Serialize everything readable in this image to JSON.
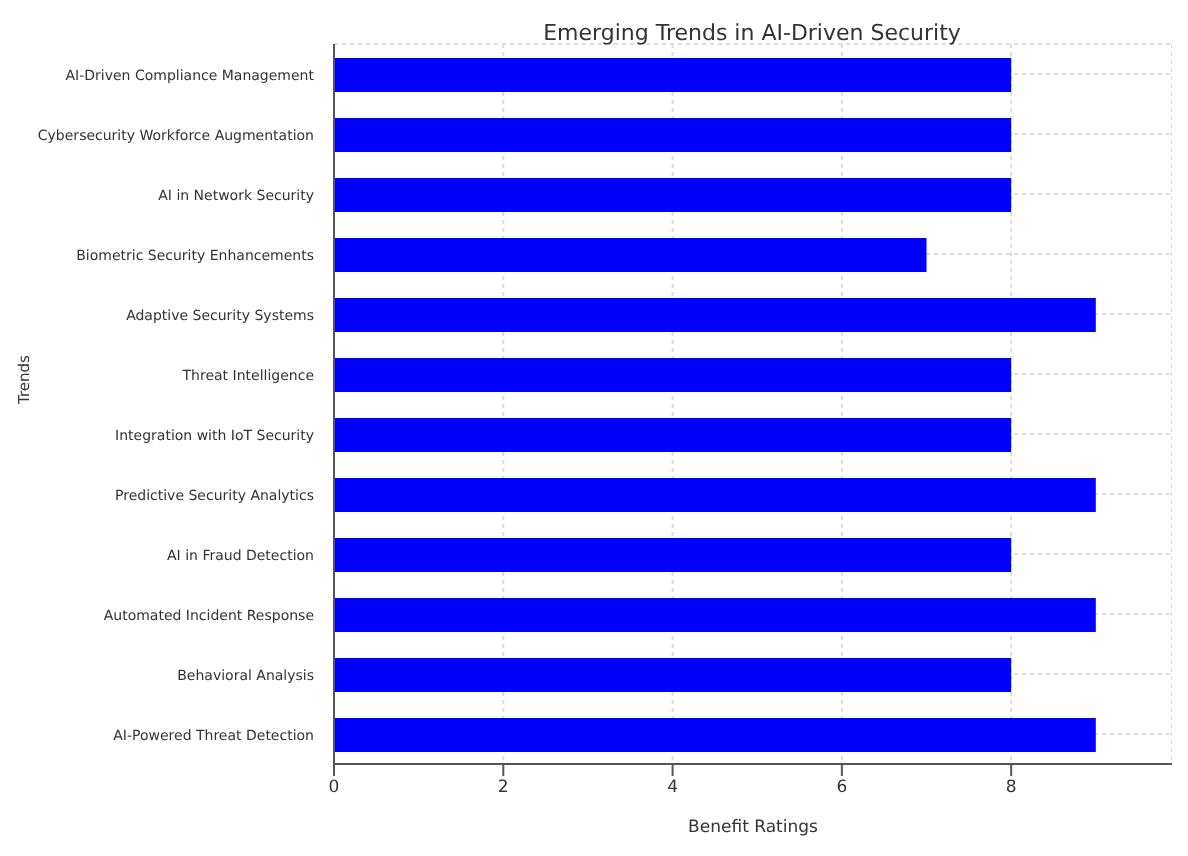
{
  "chart_data": {
    "type": "bar",
    "orientation": "horizontal",
    "title": "Emerging Trends in AI-Driven Security",
    "xlabel": "Benefit Ratings",
    "ylabel": "Trends",
    "categories": [
      "AI-Driven Compliance Management",
      "Cybersecurity Workforce Augmentation",
      "AI in Network Security",
      "Biometric Security Enhancements",
      "Adaptive Security Systems",
      "Threat Intelligence",
      "Integration with IoT Security",
      "Predictive Security Analytics",
      "AI in Fraud Detection",
      "Automated Incident Response",
      "Behavioral Analysis",
      "AI-Powered Threat Detection"
    ],
    "values": [
      8,
      8,
      8,
      7,
      9,
      8,
      8,
      9,
      8,
      9,
      8,
      9
    ],
    "color": "#0000ff",
    "xlim": [
      0,
      9.9
    ],
    "xticks": [
      0,
      2,
      4,
      6,
      8
    ],
    "grid": true
  }
}
